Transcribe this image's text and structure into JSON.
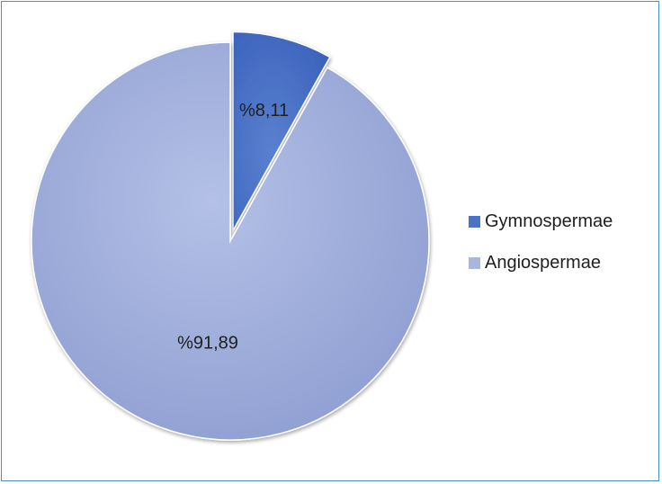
{
  "chart_data": {
    "type": "pie",
    "slices": [
      {
        "name": "Gymnospermae",
        "value": 8.11,
        "label": "%8,11",
        "color": "#4a72c8",
        "exploded": true
      },
      {
        "name": "Angiospermae",
        "value": 91.89,
        "label": "%91,89",
        "color": "#a9b6df",
        "exploded": false
      }
    ],
    "legend_position": "right",
    "title": ""
  }
}
